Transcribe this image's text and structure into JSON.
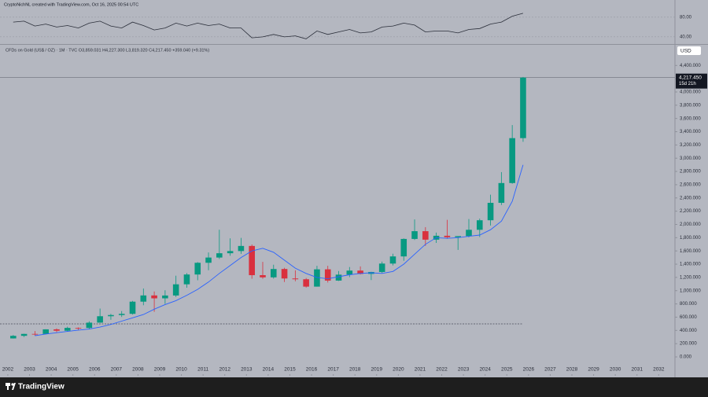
{
  "chart_data": {
    "type": "candlestick",
    "header": "CryptoNichNL created with TradingView.com, Oct 16, 2025 00:54 UTC",
    "legend": "CFDs on Gold (US$ / OZ) · 1M · TVC  O3,859.031 H4,227.300 L3,819.320 C4,217.450 +359.040 (+9.31%)",
    "currency": "USD",
    "brand": "TradingView",
    "up_color": "#089981",
    "down_color": "#d9303e",
    "x": [
      2002.25,
      2002.75,
      2003.25,
      2003.75,
      2004.25,
      2004.75,
      2005.25,
      2005.75,
      2006.25,
      2006.75,
      2007.25,
      2007.75,
      2008.25,
      2008.75,
      2009.25,
      2009.75,
      2010.25,
      2010.75,
      2011.25,
      2011.75,
      2012.25,
      2012.75,
      2013.25,
      2013.75,
      2014.25,
      2014.75,
      2015.25,
      2015.75,
      2016.25,
      2016.75,
      2017.25,
      2017.75,
      2018.25,
      2018.75,
      2019.25,
      2019.75,
      2020.25,
      2020.75,
      2021.25,
      2021.75,
      2022.25,
      2022.75,
      2023.25,
      2023.75,
      2024.25,
      2024.75,
      2025.25,
      2025.75
    ],
    "open": [
      279,
      318,
      347,
      346,
      416,
      395,
      438,
      437,
      517,
      614,
      632,
      650,
      834,
      928,
      884,
      927,
      1096,
      1244,
      1421,
      1500,
      1565,
      1598,
      1675,
      1234,
      1201,
      1327,
      1184,
      1172,
      1061,
      1322,
      1152,
      1242,
      1303,
      1253,
      1282,
      1409,
      1517,
      1781,
      1898,
      1770,
      1829,
      1807,
      1824,
      1919,
      2063,
      2326,
      2625,
      3303
    ],
    "high": [
      330,
      350,
      390,
      417,
      430,
      456,
      445,
      538,
      730,
      650,
      692,
      845,
      1033,
      988,
      1006,
      1226,
      1265,
      1431,
      1577,
      1920,
      1790,
      1796,
      1697,
      1434,
      1392,
      1345,
      1307,
      1191,
      1375,
      1375,
      1296,
      1357,
      1366,
      1285,
      1439,
      1557,
      1789,
      2075,
      1959,
      1877,
      2070,
      1814,
      2081,
      2088,
      2450,
      2790,
      3500,
      4227
    ],
    "low": [
      277,
      300,
      320,
      340,
      372,
      385,
      410,
      418,
      515,
      560,
      603,
      640,
      780,
      681,
      800,
      905,
      1044,
      1157,
      1308,
      1478,
      1527,
      1556,
      1180,
      1180,
      1182,
      1131,
      1142,
      1046,
      1061,
      1123,
      1146,
      1204,
      1245,
      1160,
      1266,
      1381,
      1451,
      1765,
      1676,
      1721,
      1785,
      1615,
      1804,
      1810,
      1984,
      2293,
      2614,
      3248
    ],
    "close": [
      318,
      347,
      346,
      416,
      395,
      438,
      437,
      517,
      614,
      632,
      650,
      834,
      928,
      884,
      927,
      1096,
      1244,
      1421,
      1500,
      1565,
      1598,
      1675,
      1234,
      1201,
      1327,
      1184,
      1172,
      1061,
      1322,
      1152,
      1242,
      1303,
      1253,
      1282,
      1409,
      1517,
      1781,
      1898,
      1770,
      1829,
      1807,
      1824,
      1919,
      2063,
      2326,
      2625,
      3303,
      4217
    ],
    "ma": {
      "color": "#2962ff",
      "values": [
        null,
        null,
        320,
        345,
        365,
        385,
        405,
        420,
        450,
        490,
        540,
        590,
        640,
        720,
        790,
        850,
        930,
        1020,
        1130,
        1260,
        1380,
        1500,
        1600,
        1640,
        1580,
        1460,
        1340,
        1260,
        1200,
        1180,
        1210,
        1240,
        1260,
        1270,
        1260,
        1290,
        1400,
        1550,
        1700,
        1800,
        1790,
        1800,
        1820,
        1840,
        1920,
        2050,
        2350,
        2900
      ]
    },
    "horizontal_line": 498,
    "last_price": {
      "value": 4217.45,
      "label": "4,217.450",
      "countdown": "15d 21h"
    },
    "xlim": [
      2001.64,
      2032.75
    ],
    "xticks": [
      2002,
      2003,
      2004,
      2005,
      2006,
      2007,
      2008,
      2009,
      2010,
      2011,
      2012,
      2013,
      2014,
      2015,
      2016,
      2017,
      2018,
      2019,
      2020,
      2021,
      2022,
      2023,
      2024,
      2025,
      2026,
      2027,
      2028,
      2029,
      2030,
      2031,
      2032
    ],
    "ylim": [
      -285,
      4700
    ],
    "yticks": [
      {
        "value": 0,
        "label": "0.000"
      },
      {
        "value": 200,
        "label": "200.000"
      },
      {
        "value": 400,
        "label": "400.000"
      },
      {
        "value": 600,
        "label": "600.000"
      },
      {
        "value": 800,
        "label": "800.000"
      },
      {
        "value": 1000,
        "label": "1,000.000"
      },
      {
        "value": 1200,
        "label": "1,200.000"
      },
      {
        "value": 1400,
        "label": "1,400.000"
      },
      {
        "value": 1600,
        "label": "1,600.000"
      },
      {
        "value": 1800,
        "label": "1,800.000"
      },
      {
        "value": 2000,
        "label": "2,000.000"
      },
      {
        "value": 2200,
        "label": "2,200.000"
      },
      {
        "value": 2400,
        "label": "2,400.000"
      },
      {
        "value": 2600,
        "label": "2,600.000"
      },
      {
        "value": 2800,
        "label": "2,800.000"
      },
      {
        "value": 3000,
        "label": "3,000.000"
      },
      {
        "value": 3200,
        "label": "3,200.000"
      },
      {
        "value": 3400,
        "label": "3,400.000"
      },
      {
        "value": 3600,
        "label": "3,600.000"
      },
      {
        "value": 3800,
        "label": "3,800.000"
      },
      {
        "value": 4000,
        "label": "4,000.000"
      },
      {
        "value": 4200,
        "label": "4,200.000"
      },
      {
        "value": 4400,
        "label": "4,400.000"
      }
    ],
    "rsi": {
      "color": "#2a2e39",
      "values": [
        70,
        72,
        62,
        66,
        60,
        63,
        58,
        68,
        72,
        62,
        58,
        70,
        63,
        54,
        58,
        68,
        62,
        68,
        63,
        66,
        58,
        58,
        38,
        40,
        45,
        40,
        42,
        36,
        52,
        45,
        50,
        55,
        48,
        50,
        60,
        62,
        68,
        64,
        50,
        52,
        52,
        48,
        55,
        57,
        66,
        70,
        82,
        88
      ],
      "ylim": [
        27,
        107
      ],
      "yticks": [
        {
          "value": 80,
          "label": "80.00"
        },
        {
          "value": 40,
          "label": "40.00"
        }
      ]
    }
  }
}
